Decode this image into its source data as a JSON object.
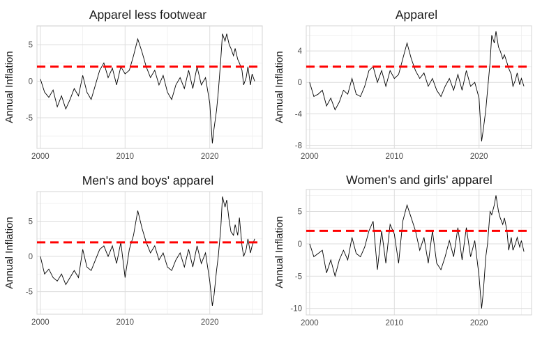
{
  "chart_data": [
    {
      "type": "line",
      "title": "Apparel less footwear",
      "ylabel": "Annual Inflation",
      "xlabel": "",
      "xlim": [
        1999.6,
        2026.2
      ],
      "ylim": [
        -9.2,
        7.6
      ],
      "x_ticks": [
        2000,
        2010,
        2020
      ],
      "x_tick_labels": [
        "2000",
        "2010",
        "2020"
      ],
      "y_ticks": [
        -5,
        0,
        5
      ],
      "y_tick_labels": [
        "-5",
        "0",
        "5"
      ],
      "reference_line": {
        "value": 2,
        "color": "#ff0000",
        "style": "dashed"
      },
      "series": [
        {
          "x": [
            2000.0,
            2000.5,
            2001.0,
            2001.5,
            2002.0,
            2002.5,
            2003.0,
            2003.5,
            2004.0,
            2004.5,
            2005.0,
            2005.5,
            2006.0,
            2006.5,
            2007.0,
            2007.5,
            2008.0,
            2008.5,
            2009.0,
            2009.5,
            2010.0,
            2010.5,
            2011.0,
            2011.5,
            2012.0,
            2012.5,
            2013.0,
            2013.5,
            2014.0,
            2014.5,
            2015.0,
            2015.5,
            2016.0,
            2016.5,
            2017.0,
            2017.5,
            2018.0,
            2018.5,
            2019.0,
            2019.5,
            2020.0,
            2020.3,
            2020.5,
            2020.8,
            2021.0,
            2021.3,
            2021.5,
            2021.8,
            2022.0,
            2022.3,
            2022.5,
            2022.8,
            2023.0,
            2023.3,
            2023.5,
            2023.8,
            2024.0,
            2024.3,
            2024.5,
            2024.8,
            2025.0,
            2025.3
          ],
          "values": [
            0.3,
            -1.5,
            -2.2,
            -1.2,
            -3.5,
            -2.0,
            -3.8,
            -2.5,
            -1.0,
            -2.0,
            0.8,
            -1.5,
            -2.5,
            -0.5,
            1.5,
            2.5,
            0.5,
            1.8,
            -0.5,
            2.0,
            1.0,
            1.5,
            3.5,
            5.8,
            4.0,
            2.0,
            0.5,
            1.5,
            -0.5,
            0.8,
            -1.5,
            -2.5,
            -0.5,
            0.5,
            -1.0,
            1.5,
            -1.0,
            2.0,
            -0.5,
            0.5,
            -3.0,
            -8.5,
            -6.5,
            -4.0,
            -1.5,
            3.0,
            6.5,
            5.5,
            6.5,
            5.0,
            4.5,
            3.5,
            4.5,
            3.0,
            2.5,
            1.5,
            -0.5,
            0.5,
            2.0,
            -0.5,
            1.0,
            0.0
          ]
        }
      ]
    },
    {
      "type": "line",
      "title": "Apparel",
      "ylabel": "Annual Inflation",
      "xlabel": "",
      "xlim": [
        1999.6,
        2026.2
      ],
      "ylim": [
        -8.4,
        7.2
      ],
      "x_ticks": [
        2000,
        2010,
        2020
      ],
      "x_tick_labels": [
        "2000",
        "2010",
        "2020"
      ],
      "y_ticks": [
        -8,
        -4,
        0,
        4
      ],
      "y_tick_labels": [
        "-8",
        "-4",
        "0",
        "4"
      ],
      "reference_line": {
        "value": 2,
        "color": "#ff0000",
        "style": "dashed"
      },
      "series": [
        {
          "x": [
            2000.0,
            2000.5,
            2001.0,
            2001.5,
            2002.0,
            2002.5,
            2003.0,
            2003.5,
            2004.0,
            2004.5,
            2005.0,
            2005.5,
            2006.0,
            2006.5,
            2007.0,
            2007.5,
            2008.0,
            2008.5,
            2009.0,
            2009.5,
            2010.0,
            2010.5,
            2011.0,
            2011.5,
            2012.0,
            2012.5,
            2013.0,
            2013.5,
            2014.0,
            2014.5,
            2015.0,
            2015.5,
            2016.0,
            2016.5,
            2017.0,
            2017.5,
            2018.0,
            2018.5,
            2019.0,
            2019.5,
            2020.0,
            2020.3,
            2020.5,
            2020.8,
            2021.0,
            2021.3,
            2021.5,
            2021.8,
            2022.0,
            2022.3,
            2022.5,
            2022.8,
            2023.0,
            2023.3,
            2023.5,
            2023.8,
            2024.0,
            2024.3,
            2024.5,
            2024.8,
            2025.0,
            2025.3
          ],
          "values": [
            0.0,
            -1.8,
            -1.5,
            -1.0,
            -3.0,
            -2.0,
            -3.5,
            -2.5,
            -1.0,
            -1.5,
            0.5,
            -1.5,
            -1.8,
            -0.5,
            1.5,
            2.0,
            0.0,
            1.5,
            -0.5,
            1.5,
            0.5,
            1.0,
            3.0,
            5.0,
            3.0,
            1.5,
            0.5,
            1.2,
            -0.5,
            0.5,
            -1.0,
            -1.8,
            -0.5,
            0.5,
            -1.0,
            1.0,
            -1.0,
            1.5,
            -0.5,
            0.0,
            -2.0,
            -7.5,
            -6.0,
            -3.5,
            -1.0,
            2.5,
            6.0,
            5.0,
            6.5,
            4.5,
            4.0,
            3.0,
            3.5,
            2.5,
            1.8,
            1.0,
            -0.5,
            0.3,
            1.2,
            -0.3,
            0.5,
            -0.5
          ]
        }
      ]
    },
    {
      "type": "line",
      "title": "Men's and boys' apparel",
      "ylabel": "Annual Inflation",
      "xlabel": "",
      "xlim": [
        1999.6,
        2026.2
      ],
      "ylim": [
        -8.2,
        9.2
      ],
      "x_ticks": [
        2000,
        2010,
        2020
      ],
      "x_tick_labels": [
        "2000",
        "2010",
        "2020"
      ],
      "y_ticks": [
        -5,
        0,
        5
      ],
      "y_tick_labels": [
        "-5",
        "0",
        "5"
      ],
      "reference_line": {
        "value": 2,
        "color": "#ff0000",
        "style": "dashed"
      },
      "series": [
        {
          "x": [
            2000.0,
            2000.5,
            2001.0,
            2001.5,
            2002.0,
            2002.5,
            2003.0,
            2003.5,
            2004.0,
            2004.5,
            2005.0,
            2005.5,
            2006.0,
            2006.5,
            2007.0,
            2007.5,
            2008.0,
            2008.5,
            2009.0,
            2009.5,
            2010.0,
            2010.5,
            2011.0,
            2011.5,
            2012.0,
            2012.5,
            2013.0,
            2013.5,
            2014.0,
            2014.5,
            2015.0,
            2015.5,
            2016.0,
            2016.5,
            2017.0,
            2017.5,
            2018.0,
            2018.5,
            2019.0,
            2019.5,
            2020.0,
            2020.3,
            2020.5,
            2020.8,
            2021.0,
            2021.3,
            2021.5,
            2021.8,
            2022.0,
            2022.3,
            2022.5,
            2022.8,
            2023.0,
            2023.3,
            2023.5,
            2023.8,
            2024.0,
            2024.3,
            2024.5,
            2024.8,
            2025.0,
            2025.3
          ],
          "values": [
            0.0,
            -2.5,
            -1.8,
            -3.0,
            -3.5,
            -2.5,
            -4.0,
            -3.0,
            -2.0,
            -3.0,
            1.0,
            -1.5,
            -2.0,
            -0.5,
            1.0,
            1.5,
            0.0,
            1.5,
            -1.0,
            2.0,
            -3.0,
            1.0,
            3.0,
            6.5,
            4.0,
            2.0,
            0.5,
            1.5,
            -0.5,
            0.5,
            -1.5,
            -2.0,
            -0.5,
            0.5,
            -1.5,
            1.0,
            -1.5,
            1.5,
            -1.0,
            0.5,
            -3.5,
            -7.0,
            -5.5,
            -2.0,
            0.0,
            4.0,
            8.5,
            7.0,
            8.0,
            5.0,
            3.5,
            3.0,
            4.5,
            3.0,
            5.5,
            1.5,
            0.0,
            1.0,
            2.5,
            0.5,
            1.5,
            2.5
          ]
        }
      ]
    },
    {
      "type": "line",
      "title": "Women's and girls' apparel",
      "ylabel": "Annual Inflation",
      "xlabel": "",
      "xlim": [
        1999.6,
        2026.2
      ],
      "ylim": [
        -11.0,
        8.4
      ],
      "x_ticks": [
        2000,
        2010,
        2020
      ],
      "x_tick_labels": [
        "2000",
        "2010",
        "2020"
      ],
      "y_ticks": [
        -10,
        -5,
        0,
        5
      ],
      "y_tick_labels": [
        "-10",
        "-5",
        "0",
        "5"
      ],
      "reference_line": {
        "value": 2,
        "color": "#ff0000",
        "style": "dashed"
      },
      "series": [
        {
          "x": [
            2000.0,
            2000.5,
            2001.0,
            2001.5,
            2002.0,
            2002.5,
            2003.0,
            2003.5,
            2004.0,
            2004.5,
            2005.0,
            2005.5,
            2006.0,
            2006.5,
            2007.0,
            2007.5,
            2008.0,
            2008.5,
            2009.0,
            2009.5,
            2010.0,
            2010.5,
            2011.0,
            2011.5,
            2012.0,
            2012.5,
            2013.0,
            2013.5,
            2014.0,
            2014.5,
            2015.0,
            2015.5,
            2016.0,
            2016.5,
            2017.0,
            2017.5,
            2018.0,
            2018.5,
            2019.0,
            2019.5,
            2020.0,
            2020.3,
            2020.5,
            2020.8,
            2021.0,
            2021.3,
            2021.5,
            2021.8,
            2022.0,
            2022.3,
            2022.5,
            2022.8,
            2023.0,
            2023.3,
            2023.5,
            2023.8,
            2024.0,
            2024.3,
            2024.5,
            2024.8,
            2025.0,
            2025.3
          ],
          "values": [
            0.0,
            -2.0,
            -1.5,
            -1.0,
            -4.5,
            -2.5,
            -5.0,
            -2.5,
            -1.0,
            -2.5,
            1.0,
            -1.5,
            -2.0,
            -0.5,
            2.0,
            3.5,
            -4.0,
            2.0,
            -3.0,
            3.0,
            1.5,
            -3.0,
            3.5,
            6.0,
            4.0,
            2.0,
            -1.0,
            1.0,
            -3.0,
            2.0,
            -3.0,
            -4.0,
            -2.0,
            0.5,
            -2.0,
            2.5,
            -2.5,
            2.5,
            -2.0,
            0.5,
            -5.0,
            -10.0,
            -7.5,
            -2.0,
            0.0,
            5.0,
            4.5,
            6.0,
            7.5,
            5.0,
            4.0,
            3.0,
            4.0,
            2.0,
            -1.0,
            1.0,
            -1.0,
            0.0,
            1.0,
            -0.5,
            0.5,
            -1.2
          ]
        }
      ]
    }
  ]
}
